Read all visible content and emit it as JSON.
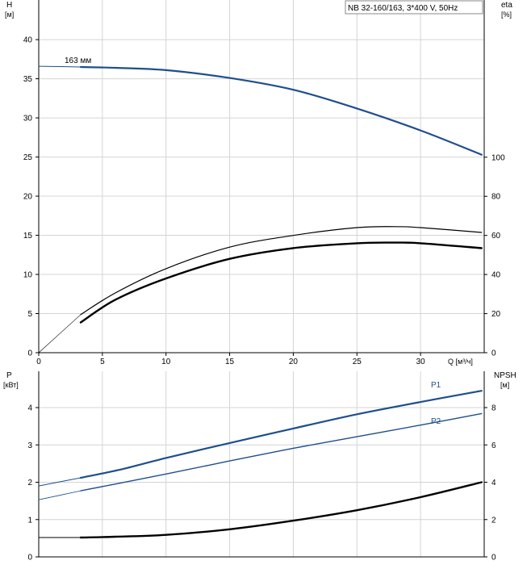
{
  "chart_data": [
    {
      "type": "line",
      "title": "NB 32-160/163, 3*400 V, 50Hz",
      "left_axis": {
        "label": "H",
        "unit": "[м]",
        "min": 0,
        "max": 45,
        "ticks": [
          0,
          5,
          10,
          15,
          20,
          25,
          30,
          35,
          40
        ]
      },
      "right_axis": {
        "label": "eta",
        "unit": "[%]",
        "min": 0,
        "max": 100,
        "ticks": [
          0,
          20,
          40,
          60,
          80,
          100
        ]
      },
      "x_axis": {
        "label": "Q [м³/ч]",
        "min": 0,
        "max": 35,
        "ticks": [
          0,
          5,
          10,
          15,
          20,
          25,
          30
        ]
      },
      "grid": true,
      "series": [
        {
          "name": "163 мм",
          "axis": "left",
          "color": "#1e4f8c",
          "x": [
            0,
            3.3,
            6,
            10,
            15,
            20,
            25,
            30,
            34.8
          ],
          "y": [
            36.6,
            36.5,
            36.4,
            36.1,
            35.1,
            33.6,
            31.2,
            28.4,
            25.3
          ]
        },
        {
          "axis": "right",
          "color": "#000000",
          "x": [
            0,
            3.3,
            6,
            10,
            15,
            20,
            25,
            28,
            30,
            34.8
          ],
          "y": [
            0,
            19.5,
            30.5,
            43,
            54,
            60,
            64,
            64.5,
            64,
            61.5
          ]
        },
        {
          "axis": "right",
          "color": "#000000",
          "x": [
            3.3,
            6,
            10,
            15,
            20,
            25,
            28,
            30,
            34.8
          ],
          "y": [
            15.5,
            27,
            38,
            48,
            53.5,
            56,
            56.3,
            56,
            53.5
          ]
        }
      ]
    },
    {
      "type": "line",
      "left_axis": {
        "label": "P",
        "unit": "[кВт]",
        "min": 0,
        "max": 4.8,
        "ticks": [
          0,
          1,
          2,
          3,
          4
        ]
      },
      "right_axis": {
        "label": "NPSH",
        "unit": "[м]",
        "min": 0,
        "max": 9.6,
        "ticks": [
          0,
          2,
          4,
          6,
          8
        ]
      },
      "x_axis": {
        "min": 0,
        "max": 35
      },
      "grid": true,
      "series": [
        {
          "name": "P1",
          "axis": "left",
          "color": "#1e4f8c",
          "x": [
            0,
            3.3,
            6.3,
            10,
            15,
            20,
            25,
            30,
            34.8
          ],
          "y": [
            1.9,
            2.12,
            2.33,
            2.65,
            3.05,
            3.44,
            3.82,
            4.15,
            4.45
          ]
        },
        {
          "name": "P2",
          "axis": "left",
          "color": "#1e4f8c",
          "x": [
            0,
            3.3,
            6,
            10,
            15,
            20,
            25,
            30,
            34.8
          ],
          "y": [
            1.53,
            1.77,
            1.95,
            2.22,
            2.57,
            2.91,
            3.22,
            3.53,
            3.84
          ]
        },
        {
          "axis": "right",
          "color": "#000000",
          "x": [
            0,
            3.3,
            6,
            10,
            15,
            20,
            25,
            30,
            34.8
          ],
          "y": [
            1.04,
            1.04,
            1.08,
            1.18,
            1.48,
            1.94,
            2.5,
            3.2,
            4.0
          ]
        }
      ]
    }
  ]
}
